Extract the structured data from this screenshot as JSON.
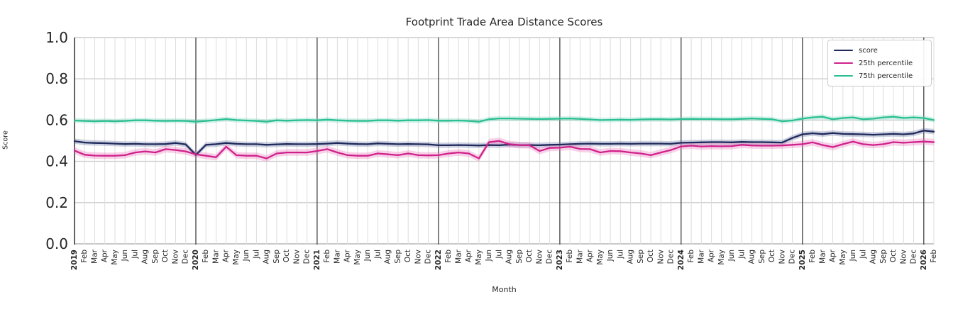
{
  "chart_data": {
    "type": "line",
    "title": "Footprint Trade Area Distance Scores",
    "xlabel": "Month",
    "ylabel": "Score",
    "ylim": [
      0,
      1
    ],
    "ytick_values": [
      0,
      0.2,
      0.4,
      0.6,
      0.8,
      1.0
    ],
    "ytick_labels": [
      "0.0",
      "0.2",
      "0.4",
      "0.6",
      "0.8",
      "1.0"
    ],
    "legend": {
      "position": "upper right"
    },
    "x_labels": [
      "2019",
      "Feb",
      "Mar",
      "Apr",
      "May",
      "Jun",
      "Jul",
      "Aug",
      "Sep",
      "Oct",
      "Nov",
      "Dec",
      "2020",
      "Feb",
      "Mar",
      "Apr",
      "May",
      "Jun",
      "Jul",
      "Aug",
      "Sep",
      "Oct",
      "Nov",
      "Dec",
      "2021",
      "Feb",
      "Mar",
      "Apr",
      "May",
      "Jun",
      "Jul",
      "Aug",
      "Sep",
      "Oct",
      "Nov",
      "Dec",
      "2022",
      "Feb",
      "Mar",
      "Apr",
      "May",
      "Jun",
      "Jul",
      "Aug",
      "Sep",
      "Oct",
      "Nov",
      "Dec",
      "2023",
      "Feb",
      "Mar",
      "Apr",
      "May",
      "Jun",
      "Jul",
      "Aug",
      "Sep",
      "Oct",
      "Nov",
      "Dec",
      "2024",
      "Feb",
      "Mar",
      "Apr",
      "May",
      "Jun",
      "Jul",
      "Aug",
      "Sep",
      "Oct",
      "Nov",
      "Dec",
      "2025",
      "Feb",
      "Mar",
      "Apr",
      "May",
      "Jun",
      "Jul",
      "Aug",
      "Sep",
      "Oct",
      "Nov",
      "Dec",
      "2026",
      "Feb"
    ],
    "series": [
      {
        "name": "score",
        "color": "#1f2a5c",
        "band_color": "#6f7aa6",
        "band_halfwidth": 0.013,
        "values": [
          0.498,
          0.491,
          0.489,
          0.488,
          0.486,
          0.484,
          0.485,
          0.483,
          0.483,
          0.484,
          0.489,
          0.482,
          0.431,
          0.48,
          0.483,
          0.489,
          0.485,
          0.483,
          0.483,
          0.48,
          0.482,
          0.484,
          0.483,
          0.483,
          0.484,
          0.486,
          0.489,
          0.486,
          0.484,
          0.483,
          0.487,
          0.485,
          0.483,
          0.484,
          0.483,
          0.482,
          0.478,
          0.478,
          0.479,
          0.478,
          0.477,
          0.479,
          0.478,
          0.481,
          0.479,
          0.479,
          0.478,
          0.48,
          0.481,
          0.483,
          0.485,
          0.486,
          0.485,
          0.485,
          0.486,
          0.485,
          0.486,
          0.486,
          0.486,
          0.485,
          0.49,
          0.491,
          0.492,
          0.493,
          0.493,
          0.492,
          0.494,
          0.493,
          0.493,
          0.492,
          0.491,
          0.513,
          0.531,
          0.536,
          0.532,
          0.537,
          0.533,
          0.532,
          0.531,
          0.529,
          0.531,
          0.533,
          0.531,
          0.535,
          0.549,
          0.544
        ]
      },
      {
        "name": "25th percentile",
        "color": "#d0218b",
        "band_color": "#ea7fc0",
        "band_halfwidth": 0.016,
        "values": [
          0.452,
          0.432,
          0.428,
          0.427,
          0.427,
          0.43,
          0.443,
          0.448,
          0.443,
          0.459,
          0.455,
          0.448,
          0.434,
          0.427,
          0.42,
          0.471,
          0.43,
          0.427,
          0.427,
          0.414,
          0.438,
          0.443,
          0.443,
          0.443,
          0.45,
          0.459,
          0.443,
          0.43,
          0.427,
          0.427,
          0.438,
          0.434,
          0.43,
          0.438,
          0.43,
          0.429,
          0.43,
          0.438,
          0.443,
          0.438,
          0.414,
          0.493,
          0.499,
          0.483,
          0.479,
          0.478,
          0.45,
          0.465,
          0.466,
          0.471,
          0.46,
          0.459,
          0.443,
          0.45,
          0.449,
          0.443,
          0.438,
          0.43,
          0.443,
          0.455,
          0.472,
          0.476,
          0.472,
          0.474,
          0.473,
          0.474,
          0.48,
          0.477,
          0.476,
          0.476,
          0.477,
          0.48,
          0.483,
          0.492,
          0.479,
          0.469,
          0.483,
          0.496,
          0.483,
          0.479,
          0.483,
          0.493,
          0.49,
          0.493,
          0.496,
          0.493
        ]
      },
      {
        "name": "75th percentile",
        "color": "#2abf92",
        "band_color": "#86dcc2",
        "band_halfwidth": 0.012,
        "values": [
          0.598,
          0.596,
          0.594,
          0.596,
          0.594,
          0.596,
          0.599,
          0.599,
          0.597,
          0.596,
          0.597,
          0.596,
          0.592,
          0.596,
          0.6,
          0.605,
          0.6,
          0.598,
          0.596,
          0.592,
          0.599,
          0.597,
          0.599,
          0.6,
          0.599,
          0.602,
          0.599,
          0.597,
          0.596,
          0.596,
          0.599,
          0.599,
          0.597,
          0.599,
          0.599,
          0.6,
          0.597,
          0.597,
          0.598,
          0.596,
          0.592,
          0.604,
          0.608,
          0.608,
          0.607,
          0.606,
          0.605,
          0.606,
          0.607,
          0.608,
          0.606,
          0.603,
          0.6,
          0.601,
          0.602,
          0.601,
          0.603,
          0.604,
          0.604,
          0.603,
          0.605,
          0.606,
          0.605,
          0.605,
          0.604,
          0.604,
          0.606,
          0.608,
          0.606,
          0.604,
          0.594,
          0.598,
          0.607,
          0.613,
          0.616,
          0.604,
          0.61,
          0.613,
          0.604,
          0.607,
          0.613,
          0.616,
          0.61,
          0.613,
          0.61,
          0.6
        ]
      }
    ]
  }
}
